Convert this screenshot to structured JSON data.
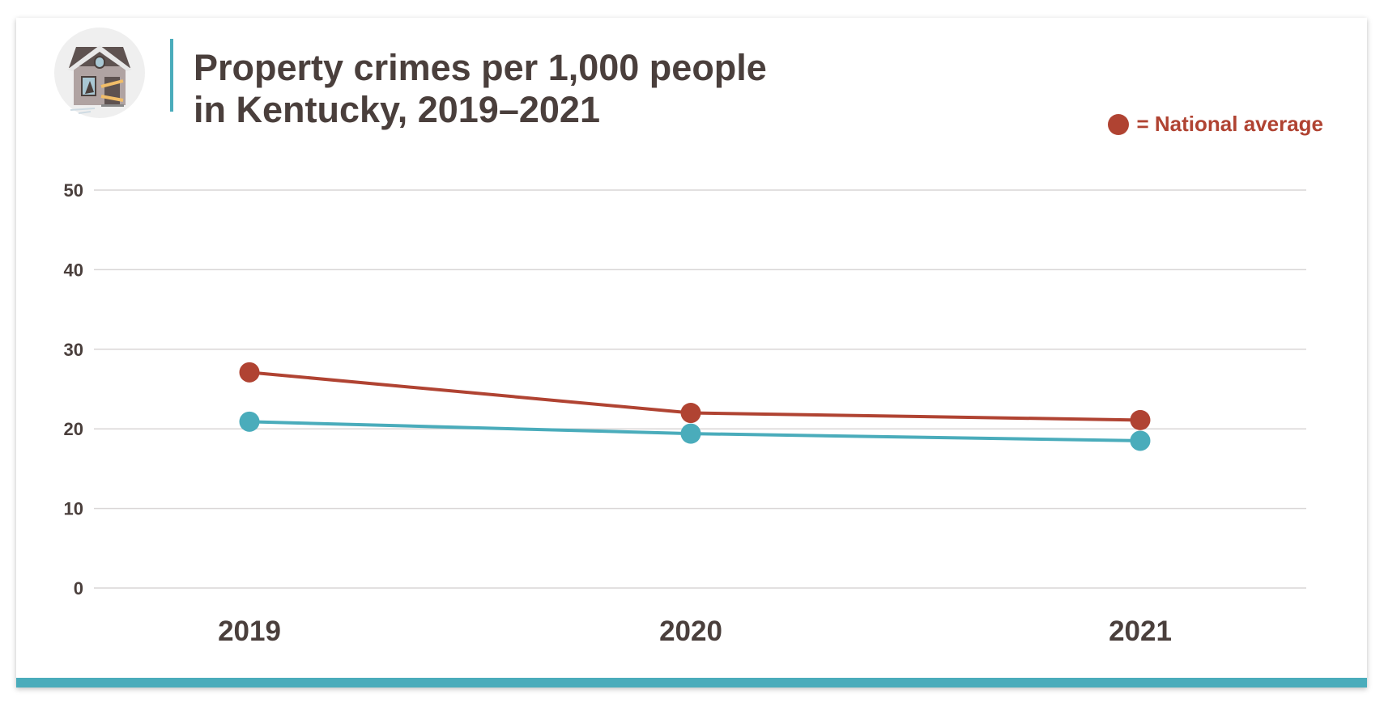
{
  "colors": {
    "national": "#b04332",
    "kentucky": "#4aacbb",
    "text": "#4a3f3c",
    "grid": "#d9d6d6"
  },
  "header": {
    "icon": "boarded-house-icon",
    "title_line1": "Property crimes per 1,000 people",
    "title_line2": "in Kentucky, 2019–2021"
  },
  "legend": {
    "label": "= National average"
  },
  "chart_data": {
    "type": "line",
    "title": "Property crimes per 1,000 people in Kentucky, 2019–2021",
    "categories": [
      "2019",
      "2020",
      "2021"
    ],
    "ylim": [
      0,
      50
    ],
    "yticks": [
      0,
      10,
      20,
      30,
      40,
      50
    ],
    "grid": true,
    "legend_position": "top-right",
    "series": [
      {
        "name": "National average",
        "color": "#b04332",
        "values": [
          27.1,
          22.0,
          21.1
        ]
      },
      {
        "color": "#4aacbb",
        "values": [
          20.9,
          19.4,
          18.5
        ]
      }
    ]
  }
}
